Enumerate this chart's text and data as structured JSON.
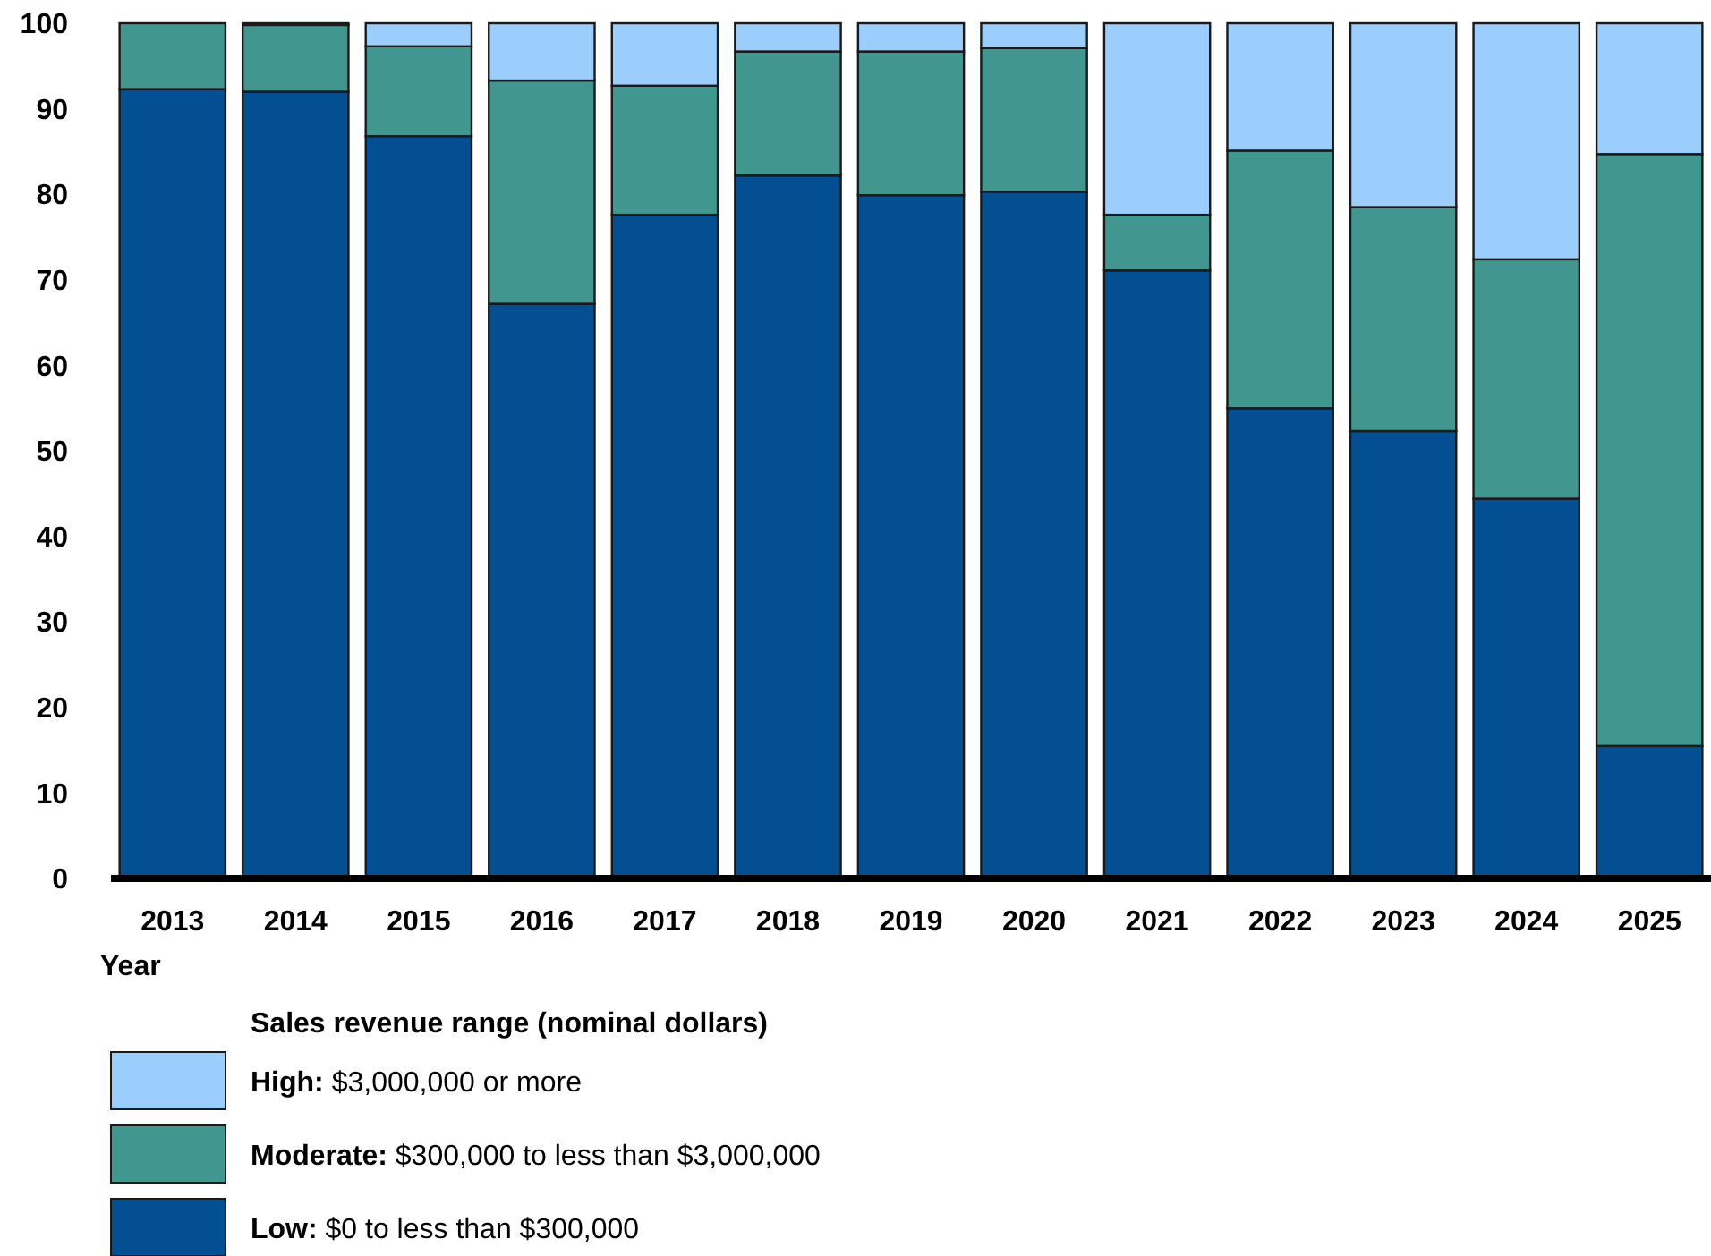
{
  "chart_data": {
    "type": "bar",
    "stacked": true,
    "xlabel": "Year",
    "legend_title": "Sales revenue range (nominal dollars)",
    "legend": "bottom",
    "categories": [
      "2013",
      "2014",
      "2015",
      "2016",
      "2017",
      "2018",
      "2019",
      "2020",
      "2021",
      "2022",
      "2023",
      "2024",
      "2025"
    ],
    "ylim": [
      0,
      100
    ],
    "yticks": [
      0,
      10,
      20,
      30,
      40,
      50,
      60,
      70,
      80,
      90,
      100
    ],
    "grid": false,
    "series": [
      {
        "name": "Low: $0 to less than $300,000",
        "color": "#034f91",
        "values": [
          92.3,
          92.0,
          86.8,
          67.2,
          77.6,
          82.2,
          79.9,
          80.3,
          71.1,
          55.0,
          52.3,
          44.4,
          15.5
        ]
      },
      {
        "name": "Moderate: $300,000 to less than $3,000,000",
        "color": "#41978f",
        "values": [
          7.7,
          7.8,
          10.5,
          26.1,
          15.1,
          14.5,
          16.8,
          16.8,
          6.5,
          30.1,
          26.2,
          28.0,
          69.2
        ]
      },
      {
        "name": "High: $3,000,000 or more",
        "color": "#9bcdfd",
        "values": [
          0,
          0.2,
          2.7,
          6.7,
          7.3,
          3.3,
          3.3,
          2.9,
          22.4,
          14.9,
          21.5,
          27.6,
          15.3
        ]
      }
    ]
  }
}
